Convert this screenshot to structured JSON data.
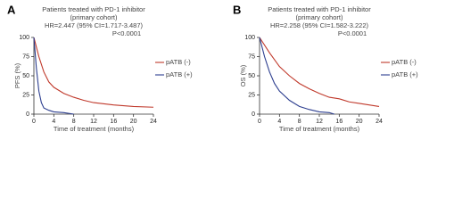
{
  "chart_data": [
    {
      "type": "line",
      "panel": "A",
      "title": "Patients treated with PD-1 inhibitor",
      "subtitle": "(primary cohort)",
      "annotations": [
        "HR=2.447 (95% CI=1.717-3.487)",
        "P<0.0001"
      ],
      "x_label": "Time of treatment (months)",
      "y_label": "PFS (%)",
      "xlim": [
        0,
        24
      ],
      "xticks": [
        0,
        4,
        8,
        12,
        16,
        20,
        24
      ],
      "ylim": [
        0,
        100
      ],
      "yticks": [
        0,
        25,
        50,
        75,
        100
      ],
      "series": [
        {
          "name": "pATB (-)",
          "color": "#c0392b",
          "x": [
            0,
            1,
            2,
            3,
            4,
            6,
            8,
            10,
            12,
            16,
            20,
            24
          ],
          "values": [
            100,
            75,
            55,
            42,
            35,
            27,
            22,
            18,
            15,
            12,
            10,
            9
          ]
        },
        {
          "name": "pATB (+)",
          "color": "#2c3e8f",
          "x": [
            0,
            0.5,
            1,
            1.5,
            2,
            3,
            4,
            6,
            8
          ],
          "values": [
            100,
            60,
            30,
            15,
            8,
            5,
            3,
            2,
            0
          ]
        }
      ]
    },
    {
      "type": "line",
      "panel": "B",
      "title": "Patients treated with PD-1 inhibitor",
      "subtitle": "(primary cohort)",
      "annotations": [
        "HR=2.258 (95% CI=1.582-3.222)",
        "P<0.0001"
      ],
      "x_label": "Time of treatment (months)",
      "y_label": "OS (%)",
      "xlim": [
        0,
        24
      ],
      "xticks": [
        0,
        4,
        8,
        12,
        16,
        20,
        24
      ],
      "ylim": [
        0,
        100
      ],
      "yticks": [
        0,
        25,
        50,
        75,
        100
      ],
      "series": [
        {
          "name": "pATB (-)",
          "color": "#c0392b",
          "x": [
            0,
            2,
            4,
            6,
            8,
            10,
            12,
            14,
            16,
            18,
            20,
            22,
            24
          ],
          "values": [
            100,
            80,
            62,
            50,
            40,
            33,
            27,
            22,
            20,
            16,
            14,
            12,
            10
          ]
        },
        {
          "name": "pATB (+)",
          "color": "#2c3e8f",
          "x": [
            0,
            1,
            2,
            3,
            4,
            6,
            8,
            10,
            12,
            14,
            15
          ],
          "values": [
            100,
            75,
            55,
            40,
            30,
            18,
            10,
            6,
            3,
            2,
            0
          ]
        }
      ]
    }
  ]
}
